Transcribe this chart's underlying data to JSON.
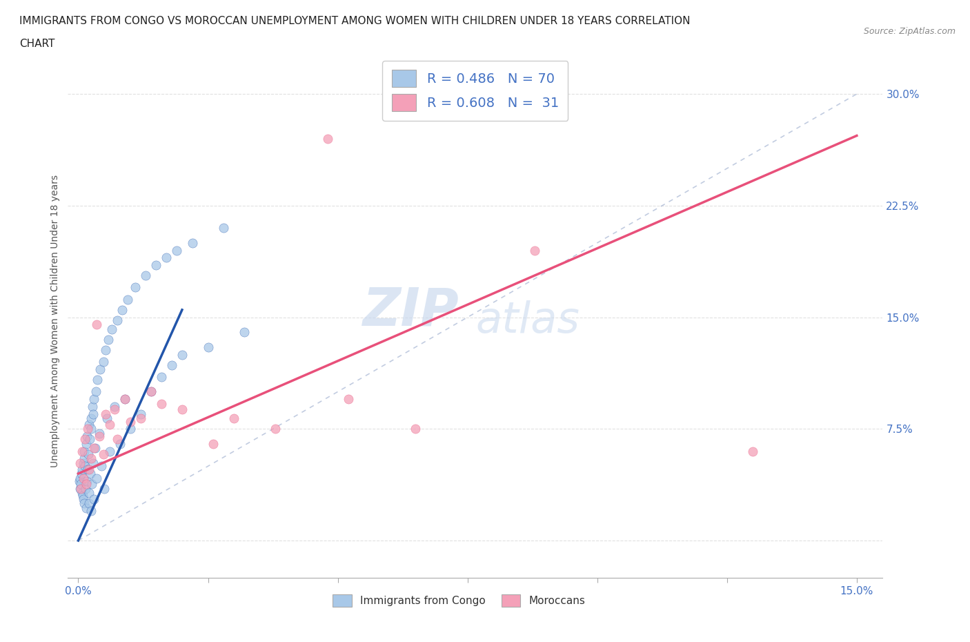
{
  "title_line1": "IMMIGRANTS FROM CONGO VS MOROCCAN UNEMPLOYMENT AMONG WOMEN WITH CHILDREN UNDER 18 YEARS CORRELATION",
  "title_line2": "CHART",
  "source": "Source: ZipAtlas.com",
  "xlim": [
    -0.002,
    0.155
  ],
  "ylim": [
    -0.025,
    0.32
  ],
  "xticks": [
    0.0,
    0.025,
    0.05,
    0.075,
    0.1,
    0.125,
    0.15
  ],
  "xticklabels": [
    "0.0%",
    "",
    "",
    "",
    "",
    "",
    "15.0%"
  ],
  "yticks": [
    0.0,
    0.075,
    0.15,
    0.225,
    0.3
  ],
  "yticklabels": [
    "",
    "7.5%",
    "15.0%",
    "22.5%",
    "30.0%"
  ],
  "series1_label": "Immigrants from Congo",
  "series2_label": "Moroccans",
  "color1": "#a8c8e8",
  "color1_line": "#2255aa",
  "color2": "#f4a0b8",
  "color2_line": "#e8507a",
  "ylabel": "Unemployment Among Women with Children Under 18 years",
  "watermark1": "ZIP",
  "watermark2": "atlas",
  "ref_line_color": "#99aacc",
  "grid_color": "#dddddd",
  "tick_color": "#4472c4",
  "congo_x": [
    0.0002,
    0.0003,
    0.0004,
    0.0005,
    0.0006,
    0.0007,
    0.0008,
    0.0009,
    0.001,
    0.001,
    0.0011,
    0.0012,
    0.0012,
    0.0013,
    0.0014,
    0.0015,
    0.0015,
    0.0016,
    0.0017,
    0.0018,
    0.0019,
    0.002,
    0.002,
    0.0021,
    0.0022,
    0.0023,
    0.0024,
    0.0025,
    0.0025,
    0.0026,
    0.0027,
    0.0028,
    0.0029,
    0.003,
    0.003,
    0.0032,
    0.0034,
    0.0035,
    0.0037,
    0.004,
    0.0042,
    0.0045,
    0.0048,
    0.005,
    0.0052,
    0.0055,
    0.0058,
    0.006,
    0.0065,
    0.007,
    0.0075,
    0.008,
    0.0085,
    0.009,
    0.0095,
    0.01,
    0.011,
    0.012,
    0.013,
    0.014,
    0.015,
    0.016,
    0.017,
    0.018,
    0.019,
    0.02,
    0.022,
    0.025,
    0.028,
    0.032
  ],
  "congo_y": [
    0.04,
    0.035,
    0.042,
    0.038,
    0.045,
    0.032,
    0.048,
    0.03,
    0.052,
    0.028,
    0.055,
    0.025,
    0.06,
    0.05,
    0.035,
    0.065,
    0.022,
    0.07,
    0.04,
    0.048,
    0.058,
    0.025,
    0.078,
    0.032,
    0.068,
    0.045,
    0.082,
    0.02,
    0.075,
    0.038,
    0.09,
    0.052,
    0.085,
    0.028,
    0.095,
    0.062,
    0.1,
    0.042,
    0.108,
    0.072,
    0.115,
    0.05,
    0.12,
    0.035,
    0.128,
    0.082,
    0.135,
    0.06,
    0.142,
    0.09,
    0.148,
    0.065,
    0.155,
    0.095,
    0.162,
    0.075,
    0.17,
    0.085,
    0.178,
    0.1,
    0.185,
    0.11,
    0.19,
    0.118,
    0.195,
    0.125,
    0.2,
    0.13,
    0.21,
    0.14
  ],
  "moroccan_x": [
    0.0003,
    0.0005,
    0.0008,
    0.001,
    0.0013,
    0.0015,
    0.0018,
    0.002,
    0.0025,
    0.003,
    0.0035,
    0.004,
    0.0048,
    0.0052,
    0.006,
    0.007,
    0.0075,
    0.009,
    0.01,
    0.012,
    0.014,
    0.016,
    0.02,
    0.026,
    0.03,
    0.038,
    0.048,
    0.052,
    0.065,
    0.088,
    0.13
  ],
  "moroccan_y": [
    0.052,
    0.035,
    0.06,
    0.042,
    0.068,
    0.038,
    0.075,
    0.048,
    0.055,
    0.062,
    0.145,
    0.07,
    0.058,
    0.085,
    0.078,
    0.088,
    0.068,
    0.095,
    0.08,
    0.082,
    0.1,
    0.092,
    0.088,
    0.065,
    0.082,
    0.075,
    0.27,
    0.095,
    0.075,
    0.195,
    0.06
  ],
  "congo_line_x": [
    0.0,
    0.02
  ],
  "congo_line_y": [
    0.0,
    0.155
  ],
  "moroccan_line_x": [
    0.0,
    0.15
  ],
  "moroccan_line_y": [
    0.045,
    0.272
  ]
}
